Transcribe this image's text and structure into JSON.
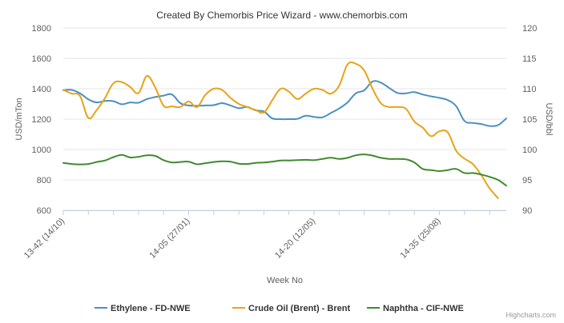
{
  "page": {
    "title": "Created By Chemorbis Price Wizard - www.chemorbis.com",
    "credits": "Highcharts.com"
  },
  "chart_data": {
    "type": "line",
    "xlabel": "Week No",
    "ylabel_left": "USD/mTon",
    "ylabel_right": "USD/bbl",
    "ylim_left": [
      600,
      1800
    ],
    "ylim_right": [
      90,
      120
    ],
    "yticks_left": [
      "600",
      "800",
      "1000",
      "1200",
      "1400",
      "1600",
      "1800"
    ],
    "yticks_right": [
      "90",
      "95",
      "100",
      "105",
      "110",
      "115",
      "120"
    ],
    "x_tick_labels": [
      {
        "label": "13-42 (14/10)",
        "x": 0
      },
      {
        "label": "14-05 (27/01)",
        "x": 15
      },
      {
        "label": "14-20 (12/05)",
        "x": 30
      },
      {
        "label": "14-35 (25/08)",
        "x": 45
      }
    ],
    "x_minor_ticks": [
      0,
      3,
      6,
      9,
      12,
      15,
      18,
      21,
      24,
      27,
      30,
      33,
      36,
      39,
      42,
      45,
      48,
      51
    ],
    "x_range": [
      0,
      51
    ],
    "grid": true,
    "legend_position": "bottom-center",
    "series": [
      {
        "name": "Ethylene - FD-NWE",
        "axis": "left",
        "color": "#4a90c0",
        "points": [
          [
            0,
            1390
          ],
          [
            1,
            1392
          ],
          [
            2,
            1370
          ],
          [
            3,
            1330
          ],
          [
            4,
            1310
          ],
          [
            5,
            1320
          ],
          [
            6,
            1318
          ],
          [
            7,
            1298
          ],
          [
            8,
            1310
          ],
          [
            9,
            1308
          ],
          [
            10,
            1332
          ],
          [
            11,
            1345
          ],
          [
            12,
            1355
          ],
          [
            13,
            1362
          ],
          [
            14,
            1305
          ],
          [
            15,
            1290
          ],
          [
            16,
            1288
          ],
          [
            17,
            1290
          ],
          [
            18,
            1292
          ],
          [
            19,
            1305
          ],
          [
            20,
            1290
          ],
          [
            21,
            1272
          ],
          [
            22,
            1280
          ],
          [
            23,
            1258
          ],
          [
            24,
            1250
          ],
          [
            25,
            1205
          ],
          [
            26,
            1200
          ],
          [
            27,
            1200
          ],
          [
            28,
            1202
          ],
          [
            29,
            1222
          ],
          [
            30,
            1215
          ],
          [
            31,
            1212
          ],
          [
            32,
            1240
          ],
          [
            33,
            1270
          ],
          [
            34,
            1310
          ],
          [
            35,
            1370
          ],
          [
            36,
            1390
          ],
          [
            37,
            1448
          ],
          [
            38,
            1440
          ],
          [
            39,
            1405
          ],
          [
            40,
            1372
          ],
          [
            41,
            1370
          ],
          [
            42,
            1378
          ],
          [
            43,
            1362
          ],
          [
            44,
            1350
          ],
          [
            45,
            1340
          ],
          [
            46,
            1325
          ],
          [
            47,
            1285
          ],
          [
            48,
            1188
          ],
          [
            49,
            1175
          ],
          [
            50,
            1168
          ],
          [
            51,
            1155
          ],
          [
            52,
            1160
          ],
          [
            53,
            1205
          ]
        ]
      },
      {
        "name": "Crude Oil (Brent) - Brent",
        "axis": "right",
        "color": "#e8a317",
        "points": [
          [
            0,
            109.8
          ],
          [
            1,
            109.2
          ],
          [
            2,
            108.8
          ],
          [
            3,
            105.2
          ],
          [
            4,
            106.5
          ],
          [
            5,
            108.5
          ],
          [
            6,
            110.9
          ],
          [
            7,
            111.1
          ],
          [
            8,
            110.3
          ],
          [
            9,
            109.3
          ],
          [
            10,
            112.1
          ],
          [
            11,
            110.2
          ],
          [
            12,
            107.2
          ],
          [
            13,
            107.1
          ],
          [
            14,
            107.0
          ],
          [
            15,
            107.9
          ],
          [
            16,
            107.0
          ],
          [
            17,
            109.0
          ],
          [
            18,
            110.0
          ],
          [
            19,
            109.8
          ],
          [
            20,
            108.5
          ],
          [
            21,
            107.5
          ],
          [
            22,
            107.0
          ],
          [
            23,
            106.5
          ],
          [
            24,
            106.1
          ],
          [
            25,
            108.1
          ],
          [
            26,
            110.0
          ],
          [
            27,
            109.5
          ],
          [
            28,
            108.3
          ],
          [
            29,
            109.2
          ],
          [
            30,
            110.0
          ],
          [
            31,
            109.8
          ],
          [
            32,
            109.2
          ],
          [
            33,
            110.5
          ],
          [
            34,
            114.0
          ],
          [
            35,
            114.1
          ],
          [
            36,
            113.0
          ],
          [
            37,
            110.0
          ],
          [
            38,
            107.6
          ],
          [
            39,
            107.0
          ],
          [
            40,
            107.0
          ],
          [
            41,
            106.7
          ],
          [
            42,
            104.6
          ],
          [
            43,
            103.6
          ],
          [
            44,
            102.2
          ],
          [
            45,
            103.0
          ],
          [
            46,
            102.8
          ],
          [
            47,
            99.8
          ],
          [
            48,
            98.5
          ],
          [
            49,
            97.6
          ],
          [
            50,
            95.8
          ],
          [
            51,
            93.6
          ],
          [
            52,
            92.0
          ]
        ]
      },
      {
        "name": "Naphtha - CIF-NWE",
        "axis": "left",
        "color": "#3f8a2e",
        "points": [
          [
            0,
            912
          ],
          [
            1,
            905
          ],
          [
            2,
            902
          ],
          [
            3,
            905
          ],
          [
            4,
            918
          ],
          [
            5,
            928
          ],
          [
            6,
            950
          ],
          [
            7,
            965
          ],
          [
            8,
            948
          ],
          [
            9,
            952
          ],
          [
            10,
            962
          ],
          [
            11,
            958
          ],
          [
            12,
            930
          ],
          [
            13,
            915
          ],
          [
            14,
            918
          ],
          [
            15,
            920
          ],
          [
            16,
            903
          ],
          [
            17,
            910
          ],
          [
            18,
            918
          ],
          [
            19,
            922
          ],
          [
            20,
            920
          ],
          [
            21,
            907
          ],
          [
            22,
            905
          ],
          [
            23,
            912
          ],
          [
            24,
            915
          ],
          [
            25,
            920
          ],
          [
            26,
            928
          ],
          [
            27,
            928
          ],
          [
            28,
            930
          ],
          [
            29,
            932
          ],
          [
            30,
            930
          ],
          [
            31,
            938
          ],
          [
            32,
            946
          ],
          [
            33,
            938
          ],
          [
            34,
            945
          ],
          [
            35,
            962
          ],
          [
            36,
            968
          ],
          [
            37,
            960
          ],
          [
            38,
            945
          ],
          [
            39,
            938
          ],
          [
            40,
            938
          ],
          [
            41,
            935
          ],
          [
            42,
            915
          ],
          [
            43,
            872
          ],
          [
            44,
            865
          ],
          [
            45,
            858
          ],
          [
            46,
            865
          ],
          [
            47,
            872
          ],
          [
            48,
            845
          ],
          [
            49,
            845
          ],
          [
            50,
            835
          ],
          [
            51,
            820
          ],
          [
            52,
            800
          ],
          [
            53,
            762
          ]
        ]
      }
    ]
  }
}
